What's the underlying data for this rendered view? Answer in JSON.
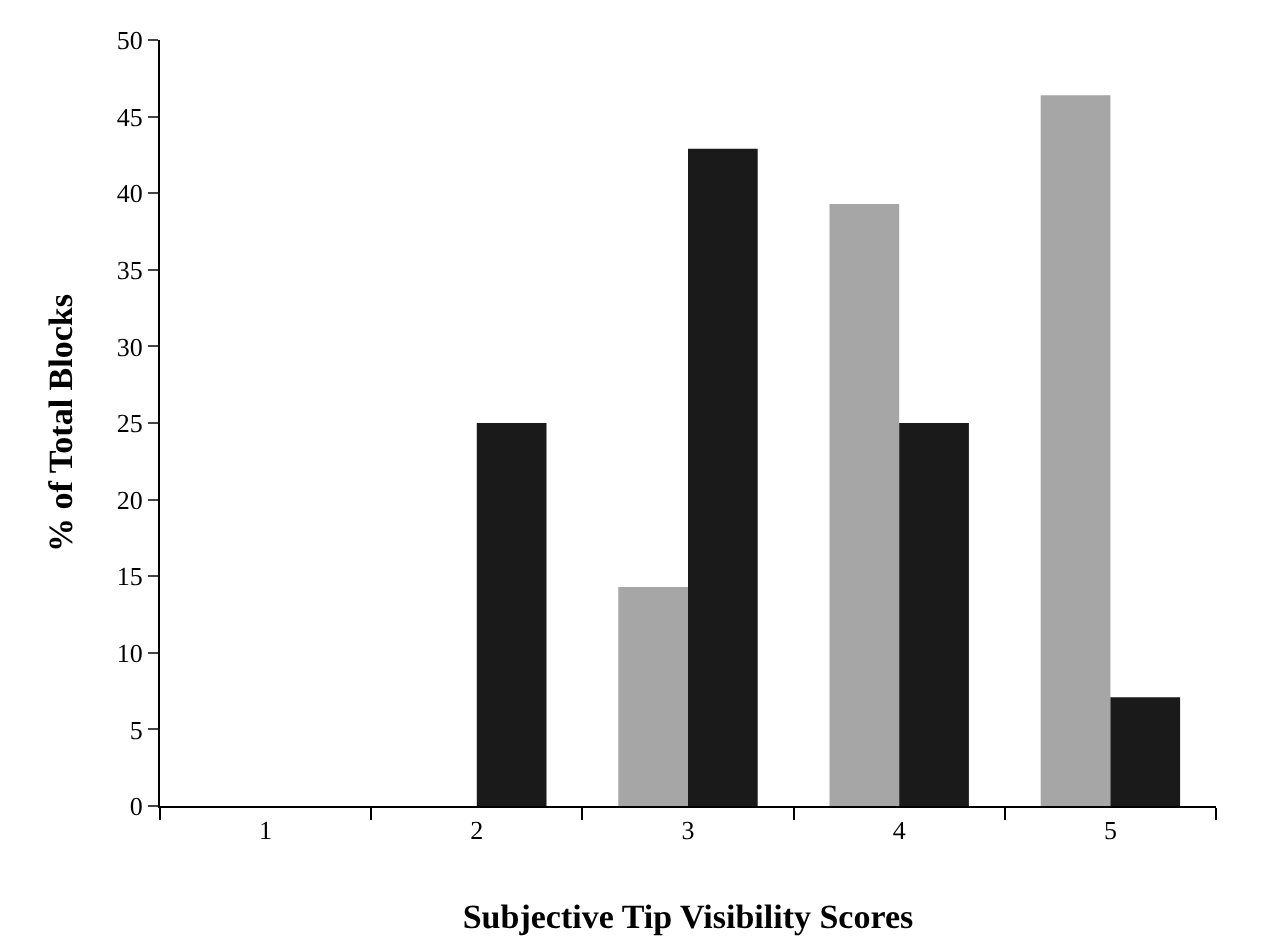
{
  "chart_data": {
    "type": "bar",
    "xlabel": "Subjective Tip Visibility Scores",
    "ylabel": "% of Total Blocks",
    "categories": [
      "1",
      "2",
      "3",
      "4",
      "5"
    ],
    "series": [
      {
        "color": "#a6a6a6",
        "values": [
          0,
          0,
          14.3,
          39.3,
          46.4
        ]
      },
      {
        "color": "#1a1a1a",
        "values": [
          0,
          25,
          42.9,
          25,
          7.1
        ]
      }
    ],
    "ylim": [
      0,
      50
    ],
    "yticks": [
      0,
      5,
      10,
      15,
      20,
      25,
      30,
      35,
      40,
      45,
      50
    ]
  }
}
